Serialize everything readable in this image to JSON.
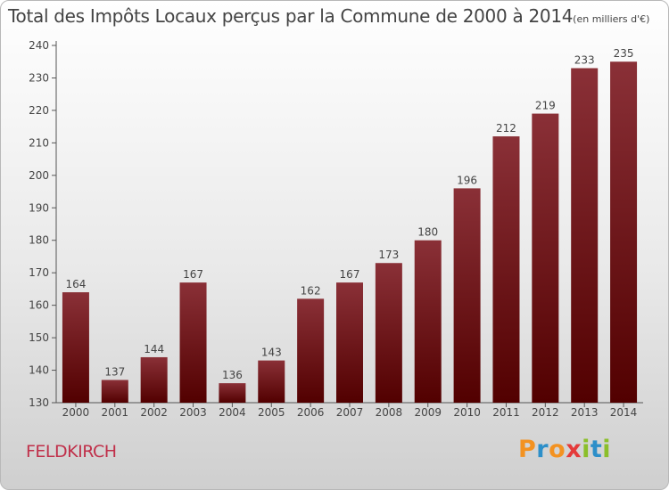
{
  "chart_data": {
    "type": "bar",
    "title": "Total des Impôts Locaux perçus par la Commune de 2000 à 2014",
    "subtitle": "(en milliers d'€)",
    "categories": [
      "2000",
      "2001",
      "2002",
      "2003",
      "2004",
      "2005",
      "2006",
      "2007",
      "2008",
      "2009",
      "2010",
      "2011",
      "2012",
      "2013",
      "2014"
    ],
    "values": [
      164,
      137,
      144,
      167,
      136,
      143,
      162,
      167,
      173,
      180,
      196,
      212,
      219,
      233,
      235
    ],
    "ylim": [
      130,
      240
    ],
    "yticks": [
      130,
      140,
      150,
      160,
      170,
      180,
      190,
      200,
      210,
      220,
      230,
      240
    ],
    "xlabel": "",
    "ylabel": "",
    "grid": false,
    "bar_color_top": "#8a3037",
    "bar_color_bottom": "#520000"
  },
  "footer": {
    "commune": "FELDKIRCH",
    "brand": "Proxiti",
    "brand_colors": [
      "#f39221",
      "#2d8fc9",
      "#f39221",
      "#e43a3a",
      "#8bbf2a",
      "#2d8fc9",
      "#8bbf2a"
    ]
  }
}
